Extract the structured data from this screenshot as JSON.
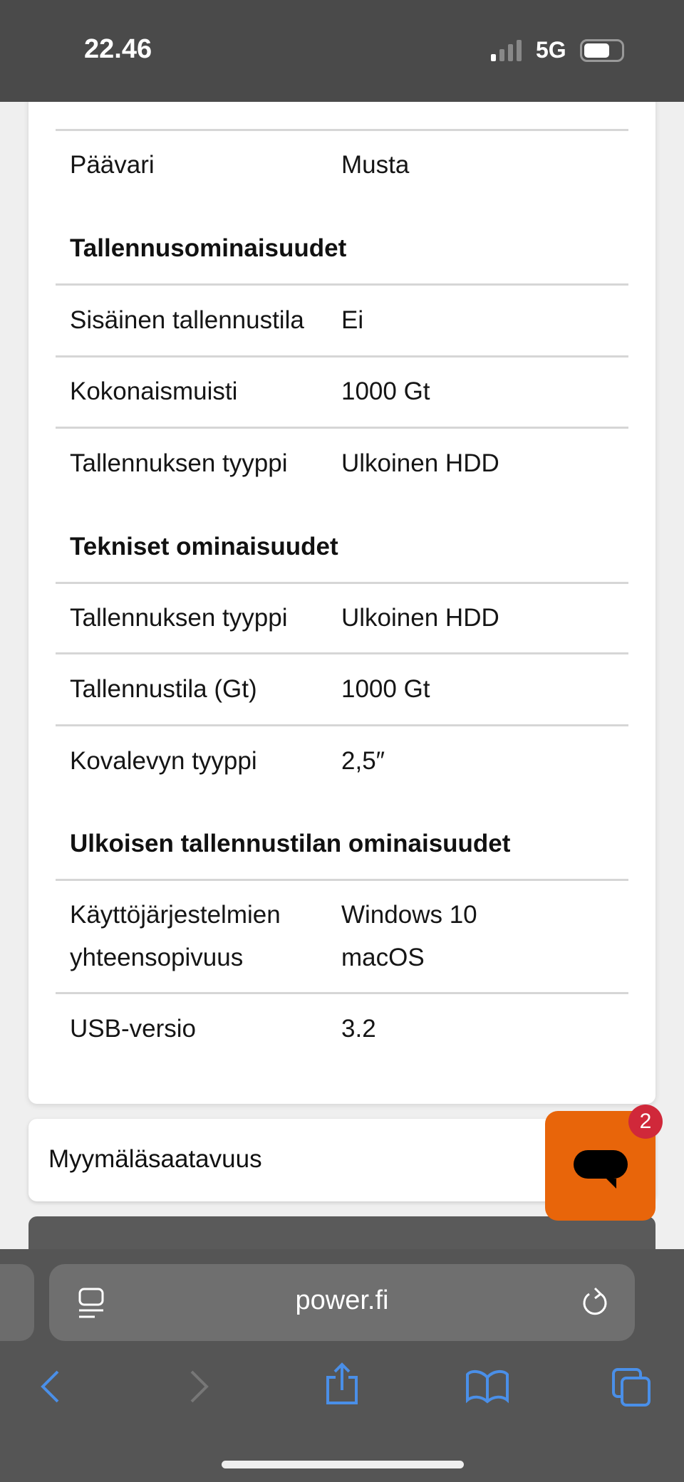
{
  "status_bar": {
    "time": "22.46",
    "network": "5G",
    "battery_level": 0.7
  },
  "specs": {
    "rows_top": [
      {
        "label": "Päävari_",
        "value": "Musta"
      }
    ],
    "sections": [
      {
        "title": "Tallennusominaisuudet",
        "rows": [
          {
            "label": "Sisäinen tallennustila",
            "value": "Ei"
          },
          {
            "label": "Kokonaismuisti",
            "value": "1000 Gt"
          },
          {
            "label": "Tallennuksen tyyppi",
            "value": "Ulkoinen HDD"
          }
        ]
      },
      {
        "title": "Tekniset ominaisuudet",
        "rows": [
          {
            "label": "Tallennuksen tyyppi",
            "value": "Ulkoinen HDD"
          },
          {
            "label": "Tallennustila (Gt)",
            "value": "1000 Gt"
          },
          {
            "label": "Kovalevyn tyyppi",
            "value": "2,5″"
          }
        ]
      },
      {
        "title": "Ulkoisen tallennustilan ominaisuudet",
        "rows": [
          {
            "label": "Käyttöjärjestelmien",
            "label2": "yhteensopivuus",
            "value": "Windows 10",
            "value2": "macOS"
          },
          {
            "label": "USB-versio",
            "value": "3.2"
          }
        ]
      }
    ]
  },
  "store_availability": "Myymäläsaatavuus",
  "chat": {
    "badge": "2",
    "color": "#e8650a"
  },
  "browser": {
    "url": "power.fi"
  }
}
